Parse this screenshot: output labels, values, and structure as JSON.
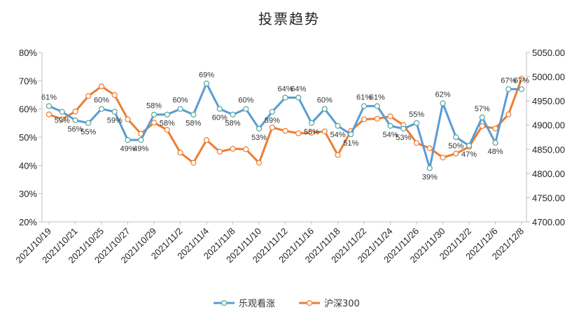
{
  "chart_data": {
    "type": "line",
    "title": "投票趋势",
    "legend_position": "bottom",
    "grid": false,
    "y_left": {
      "min": 0.2,
      "max": 0.8,
      "step": 0.1,
      "tick_labels": [
        "20%",
        "30%",
        "40%",
        "50%",
        "60%",
        "70%",
        "80%"
      ]
    },
    "y_right": {
      "min": 4700,
      "max": 5050,
      "step": 50,
      "tick_labels": [
        "4700.00",
        "4750.00",
        "4800.00",
        "4850.00",
        "4900.00",
        "4950.00",
        "5000.00",
        "5050.00"
      ]
    },
    "x_tick_labels": [
      "2021/10/19",
      "2021/10/21",
      "2021/10/25",
      "2021/10/27",
      "2021/10/29",
      "2021/11/2",
      "2021/11/4",
      "2021/11/8",
      "2021/11/10",
      "2021/11/12",
      "2021/11/16",
      "2021/11/18",
      "2021/11/22",
      "2021/11/24",
      "2021/11/26",
      "2021/11/30",
      "2021/12/2",
      "2021/12/6",
      "2021/12/8"
    ],
    "series": [
      {
        "name": "乐观看涨",
        "axis": "left",
        "color": "#5b9bd5",
        "values": [
          0.61,
          0.59,
          0.56,
          0.55,
          0.6,
          0.59,
          0.49,
          0.49,
          0.58,
          0.58,
          0.6,
          0.58,
          0.69,
          0.6,
          0.58,
          0.6,
          0.53,
          0.59,
          0.64,
          0.64,
          0.55,
          0.6,
          0.54,
          0.51,
          0.61,
          0.61,
          0.54,
          0.53,
          0.55,
          0.39,
          0.62,
          0.5,
          0.47,
          0.57,
          0.48,
          0.67,
          0.67
        ],
        "labels": [
          "61%",
          "59%",
          "56%",
          "55%",
          "60%",
          "59%",
          "49%",
          "49%",
          "58%",
          "58%",
          "60%",
          "58%",
          "69%",
          "60%",
          "58%",
          "60%",
          "53%",
          "59%",
          "64%",
          "64%",
          "55%",
          "60%",
          "54%",
          "51%",
          "61%",
          "61%",
          "54%",
          "53%",
          "55%",
          "39%",
          "62%",
          "50%",
          "47%",
          "57%",
          "48%",
          "67%",
          "67%"
        ]
      },
      {
        "name": "沪深300",
        "axis": "right",
        "color": "#ed7d31",
        "values": [
          4922,
          4912,
          4928,
          4960,
          4980,
          4962,
          4912,
          4882,
          4905,
          4890,
          4843,
          4822,
          4869,
          4845,
          4851,
          4850,
          4822,
          4895,
          4888,
          4883,
          4884,
          4887,
          4838,
          4888,
          4912,
          4913,
          4918,
          4900,
          4863,
          4852,
          4833,
          4841,
          4855,
          4898,
          4893,
          4922,
          4996
        ]
      }
    ]
  }
}
